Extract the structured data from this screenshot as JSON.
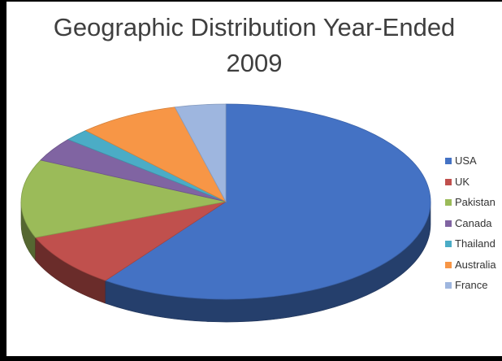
{
  "chart_data": {
    "type": "pie",
    "title": [
      "Geographic Distribution Year-Ended",
      "2009"
    ],
    "categories": [
      "USA",
      "UK",
      "Pakistan",
      "Canada",
      "Thailand",
      "Australia",
      "France"
    ],
    "values": [
      60,
      9,
      13,
      4,
      2,
      8,
      4
    ],
    "colors": [
      "#4472c4",
      "#c0504d",
      "#9bbb59",
      "#8064a2",
      "#4bacc6",
      "#f79646",
      "#9eb6df"
    ],
    "legend_position": "right",
    "three_d": true
  }
}
